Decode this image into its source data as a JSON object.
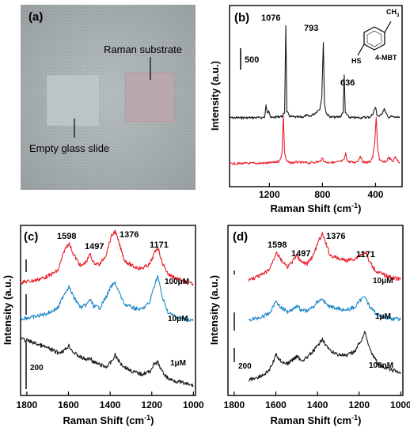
{
  "chart_data": [
    {
      "panel": "(a)",
      "type": "other",
      "labels": {
        "substrate": "Raman substrate",
        "glass": "Empty glass slide"
      }
    },
    {
      "panel": "(b)",
      "type": "line",
      "xlabel_main": "Raman Shift (cm",
      "xlabel_sup": "-1",
      "xlabel_end": ")",
      "ylabel": "Intensity (a.u.)",
      "xlim": [
        1500,
        200
      ],
      "xticks": [
        1200,
        800,
        400
      ],
      "scale_bar": "500",
      "molecule_label": "4-MBT",
      "molecule_groups": {
        "methyl": "CH",
        "methyl_sub": "3",
        "thiol": "HS"
      },
      "peak_labels": [
        "1076",
        "793",
        "636"
      ],
      "series": [
        {
          "color": "#1a1a1a",
          "x": [
            1500,
            1260,
            1235,
            1225,
            1215,
            1205,
            1190,
            1180,
            1150,
            1100,
            1085,
            1076,
            1068,
            1050,
            1000,
            950,
            920,
            900,
            860,
            820,
            805,
            793,
            785,
            770,
            740,
            700,
            660,
            645,
            636,
            628,
            600,
            560,
            520,
            480,
            440,
            420,
            400,
            390,
            370,
            350,
            335,
            320,
            305,
            280,
            250,
            220
          ],
          "y": [
            5,
            6,
            10,
            80,
            30,
            55,
            8,
            5,
            10,
            15,
            40,
            570,
            45,
            15,
            8,
            10,
            20,
            12,
            30,
            60,
            130,
            470,
            90,
            30,
            10,
            8,
            15,
            40,
            260,
            35,
            8,
            5,
            6,
            8,
            10,
            30,
            70,
            25,
            12,
            35,
            60,
            30,
            8,
            12,
            8,
            5
          ]
        },
        {
          "color": "#e8202a",
          "x": [
            1500,
            1300,
            1200,
            1150,
            1120,
            1105,
            1095,
            1085,
            1070,
            1040,
            1000,
            900,
            820,
            800,
            780,
            700,
            640,
            625,
            610,
            560,
            530,
            515,
            500,
            470,
            440,
            420,
            405,
            395,
            385,
            370,
            350,
            320,
            300,
            270,
            250,
            220
          ],
          "y": [
            5,
            6,
            8,
            12,
            20,
            60,
            250,
            60,
            15,
            8,
            12,
            8,
            15,
            30,
            12,
            10,
            20,
            55,
            15,
            10,
            20,
            45,
            15,
            10,
            15,
            40,
            120,
            240,
            90,
            25,
            12,
            15,
            35,
            15,
            40,
            5
          ]
        }
      ]
    },
    {
      "panel": "(c)",
      "type": "line",
      "xlabel_main": "Raman Shift (cm",
      "xlabel_sup": "-1",
      "xlabel_end": ")",
      "ylabel": "Intensity (a.u.)",
      "xlim": [
        1830,
        990
      ],
      "xticks": [
        1800,
        1600,
        1400,
        1200,
        1000
      ],
      "scale_bar": "200",
      "peak_labels": [
        "1598",
        "1497",
        "1376",
        "1171"
      ],
      "series": [
        {
          "name": "100μM",
          "color": "#e8202a",
          "x": [
            1830,
            1760,
            1700,
            1650,
            1620,
            1598,
            1575,
            1540,
            1510,
            1497,
            1480,
            1450,
            1420,
            1395,
            1376,
            1355,
            1330,
            1290,
            1250,
            1210,
            1190,
            1171,
            1150,
            1120,
            1080,
            1040,
            1000
          ],
          "y": [
            40,
            50,
            70,
            100,
            200,
            240,
            180,
            120,
            150,
            185,
            140,
            130,
            180,
            270,
            300,
            230,
            150,
            120,
            110,
            130,
            180,
            220,
            140,
            80,
            60,
            40,
            30
          ]
        },
        {
          "name": "10μM",
          "color": "#1e88c8",
          "x": [
            1830,
            1760,
            1700,
            1650,
            1620,
            1598,
            1575,
            1540,
            1510,
            1497,
            1480,
            1450,
            1420,
            1395,
            1376,
            1355,
            1330,
            1290,
            1250,
            1210,
            1190,
            1171,
            1150,
            1120,
            1080,
            1040,
            1000
          ],
          "y": [
            50,
            60,
            80,
            110,
            190,
            230,
            170,
            110,
            130,
            160,
            120,
            110,
            170,
            230,
            250,
            190,
            130,
            110,
            100,
            140,
            230,
            290,
            170,
            80,
            60,
            45,
            40
          ]
        },
        {
          "name": "1μM",
          "color": "#1a1a1a",
          "x": [
            1830,
            1760,
            1700,
            1650,
            1620,
            1598,
            1575,
            1540,
            1510,
            1497,
            1480,
            1450,
            1420,
            1395,
            1376,
            1355,
            1330,
            1290,
            1250,
            1210,
            1190,
            1171,
            1150,
            1120,
            1080,
            1040,
            1000
          ],
          "y": [
            110,
            100,
            90,
            80,
            85,
            95,
            80,
            70,
            65,
            70,
            60,
            55,
            50,
            60,
            75,
            60,
            50,
            40,
            35,
            40,
            55,
            60,
            40,
            25,
            20,
            15,
            10
          ]
        }
      ]
    },
    {
      "panel": "(d)",
      "type": "line",
      "xlabel_main": "Raman Shift (cm",
      "xlabel_sup": "-1",
      "xlabel_end": ")",
      "ylabel": "Intensity (a.u.)",
      "xlim": [
        1830,
        990
      ],
      "xticks": [
        1800,
        1600,
        1400,
        1200,
        1000
      ],
      "scale_bar": "200",
      "peak_labels": [
        "1598",
        "1497",
        "1376",
        "1171"
      ],
      "series": [
        {
          "name": "10μM",
          "color": "#e8202a",
          "x": [
            1730,
            1700,
            1660,
            1630,
            1610,
            1598,
            1580,
            1545,
            1515,
            1497,
            1480,
            1450,
            1420,
            1395,
            1376,
            1360,
            1340,
            1300,
            1260,
            1220,
            1195,
            1171,
            1150,
            1120,
            1090,
            1040,
            1000
          ],
          "y": [
            30,
            40,
            60,
            90,
            150,
            190,
            150,
            100,
            140,
            170,
            130,
            120,
            170,
            250,
            290,
            240,
            170,
            150,
            140,
            150,
            170,
            190,
            130,
            80,
            60,
            40,
            30
          ]
        },
        {
          "name": "1μM",
          "color": "#1e88c8",
          "x": [
            1730,
            1700,
            1660,
            1630,
            1610,
            1598,
            1580,
            1545,
            1515,
            1497,
            1480,
            1450,
            1420,
            1395,
            1376,
            1360,
            1340,
            1300,
            1260,
            1220,
            1195,
            1171,
            1150,
            1120,
            1090,
            1040,
            1000
          ],
          "y": [
            40,
            45,
            60,
            80,
            130,
            160,
            120,
            90,
            110,
            130,
            100,
            95,
            120,
            160,
            170,
            140,
            120,
            110,
            100,
            120,
            160,
            190,
            120,
            80,
            60,
            45,
            40
          ]
        },
        {
          "name": "100nM",
          "color": "#1a1a1a",
          "x": [
            1730,
            1700,
            1660,
            1630,
            1610,
            1598,
            1580,
            1545,
            1515,
            1497,
            1480,
            1450,
            1420,
            1395,
            1376,
            1360,
            1340,
            1300,
            1260,
            1220,
            1195,
            1171,
            1150,
            1120,
            1090,
            1040,
            1000
          ],
          "y": [
            10,
            15,
            25,
            40,
            70,
            90,
            70,
            60,
            75,
            85,
            70,
            80,
            100,
            120,
            140,
            120,
            100,
            90,
            85,
            100,
            130,
            160,
            110,
            70,
            50,
            40,
            30
          ]
        }
      ]
    }
  ]
}
